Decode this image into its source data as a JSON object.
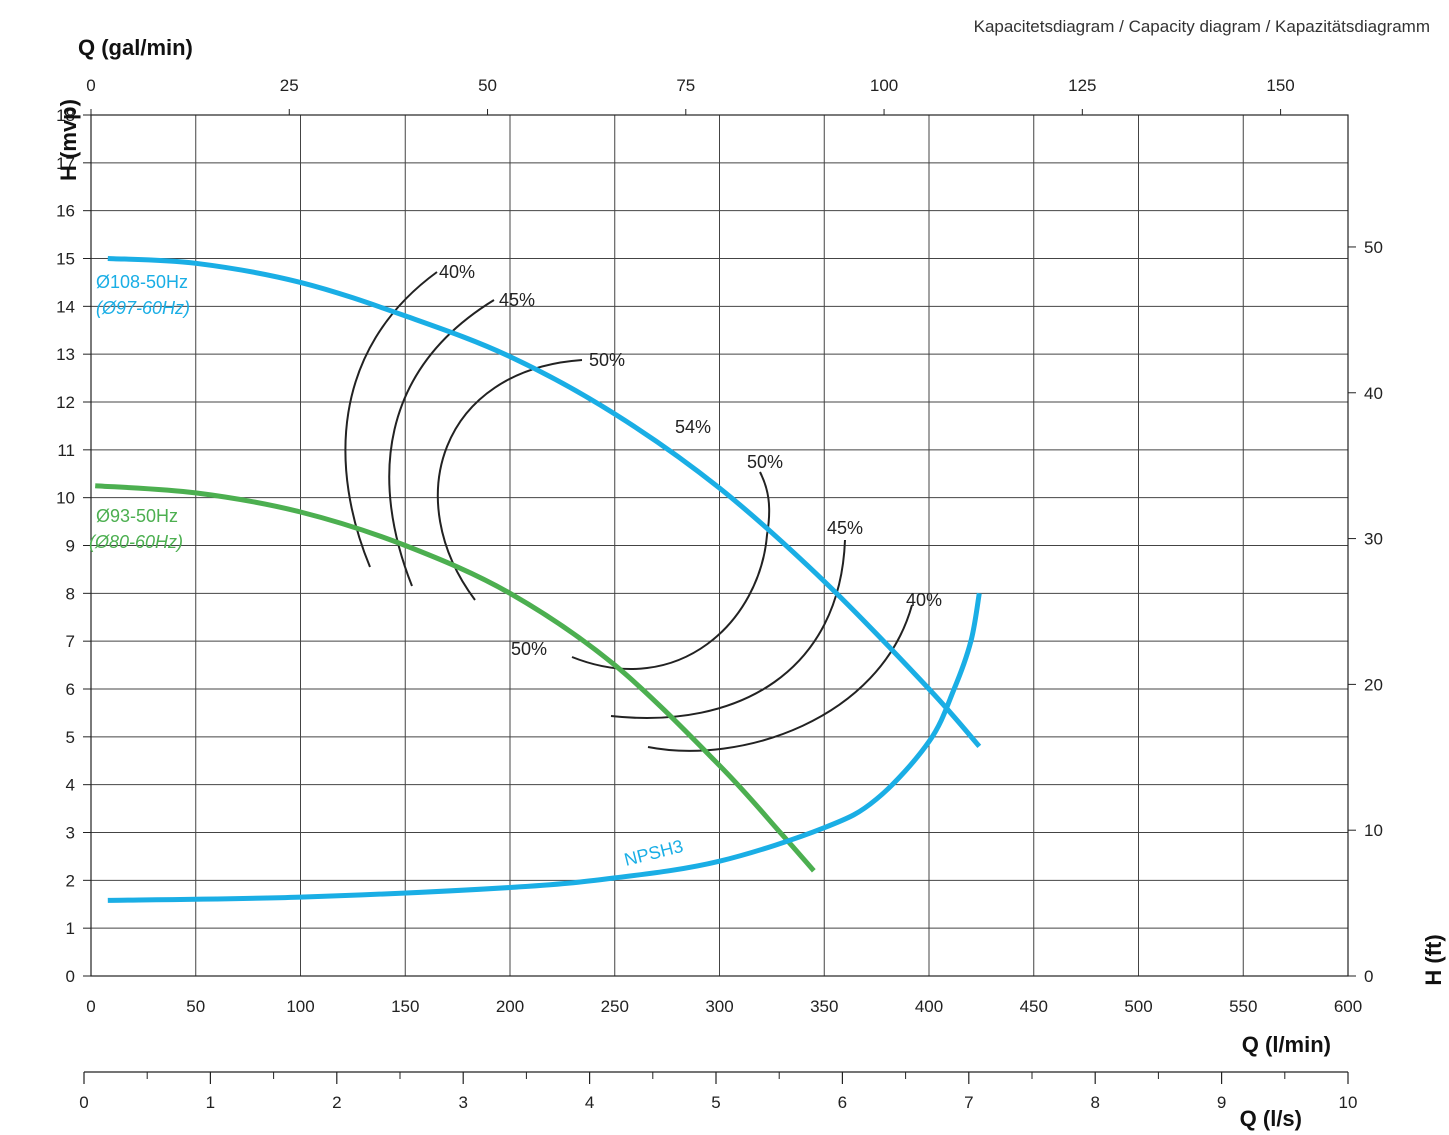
{
  "header": {
    "title": "Kapacitetsdiagram / Capacity diagram / Kapazitätsdiagramm"
  },
  "chart_data": {
    "type": "line",
    "title": "Kapacitetsdiagram / Capacity diagram / Kapazitätsdiagramm",
    "grid": true,
    "axes": {
      "x_bottom": {
        "label": "Q (l/min)",
        "range": [
          0,
          600
        ],
        "ticks": [
          "0",
          "50",
          "100",
          "150",
          "200",
          "250",
          "300",
          "350",
          "400",
          "450",
          "500",
          "550",
          "600"
        ]
      },
      "x_top": {
        "label": "Q (gal/min)",
        "range": [
          0,
          158.5
        ],
        "ticks": [
          "0",
          "25",
          "50",
          "75",
          "100",
          "125",
          "150"
        ]
      },
      "x_extra": {
        "label": "Q (l/s)",
        "range": [
          0,
          10
        ],
        "ticks": [
          "0",
          "1",
          "2",
          "3",
          "4",
          "5",
          "6",
          "7",
          "8",
          "9",
          "10"
        ]
      },
      "y_left": {
        "label": "H (mvp)",
        "range": [
          0,
          18
        ],
        "ticks": [
          "0",
          "1",
          "2",
          "3",
          "4",
          "5",
          "6",
          "7",
          "8",
          "9",
          "10",
          "11",
          "12",
          "13",
          "14",
          "15",
          "16",
          "17",
          "18"
        ]
      },
      "y_right": {
        "label": "H (ft)",
        "range": [
          0,
          59.05
        ],
        "ticks": [
          "0",
          "10",
          "20",
          "30",
          "40",
          "50"
        ]
      }
    },
    "series": [
      {
        "name": "Ø108-50Hz",
        "name_alt": "(Ø97-60Hz)",
        "color": "#1aaee5",
        "x": [
          8,
          50,
          100,
          150,
          200,
          250,
          300,
          350,
          400,
          424
        ],
        "y": [
          15.0,
          14.9,
          14.5,
          13.8,
          12.95,
          11.75,
          10.2,
          8.25,
          6.0,
          4.8
        ]
      },
      {
        "name": "Ø93-50Hz",
        "name_alt": "(Ø80-60Hz)",
        "color": "#4caf50",
        "x": [
          2,
          50,
          100,
          150,
          200,
          250,
          300,
          330,
          345
        ],
        "y": [
          10.25,
          10.1,
          9.7,
          9.0,
          8.0,
          6.5,
          4.4,
          2.95,
          2.2
        ]
      },
      {
        "name": "NPSH3",
        "color": "#1aaee5",
        "x": [
          8,
          100,
          200,
          250,
          300,
          350,
          375,
          400,
          412,
          420,
          424
        ],
        "y": [
          1.58,
          1.65,
          1.85,
          2.05,
          2.4,
          3.1,
          3.7,
          4.9,
          6.0,
          7.0,
          8.0
        ]
      }
    ],
    "efficiency_labels": [
      "40%",
      "45%",
      "50%",
      "54%",
      "50%",
      "45%",
      "40%",
      "50%"
    ]
  }
}
